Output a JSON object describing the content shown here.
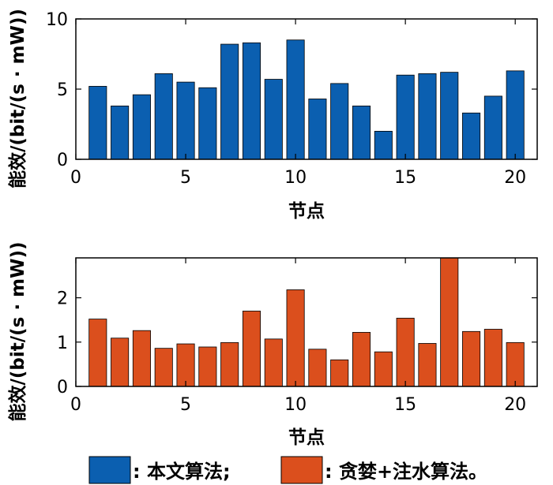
{
  "chart_data": [
    {
      "type": "bar",
      "xlabel": "节点",
      "ylabel": "能效/(bit/(s · mW))",
      "xlim": [
        0,
        21
      ],
      "ylim": [
        0,
        10
      ],
      "xticks": [
        "0",
        "5",
        "10",
        "15",
        "20"
      ],
      "yticks": [
        "0",
        "5",
        "10"
      ],
      "x": [
        1,
        2,
        3,
        4,
        5,
        6,
        7,
        8,
        9,
        10,
        11,
        12,
        13,
        14,
        15,
        16,
        17,
        18,
        19,
        20
      ],
      "series": [
        {
          "name": "本文算法",
          "color": "#0b5fb0",
          "values": [
            5.2,
            3.8,
            4.6,
            6.1,
            5.5,
            5.1,
            8.2,
            8.3,
            5.7,
            8.5,
            4.3,
            5.4,
            3.8,
            2.0,
            6.0,
            6.1,
            6.2,
            3.3,
            4.5,
            6.3
          ]
        }
      ]
    },
    {
      "type": "bar",
      "xlabel": "节点",
      "ylabel": "能效/(bit/(s · mW))",
      "xlim": [
        0,
        21
      ],
      "ylim": [
        0,
        2.9
      ],
      "xticks": [
        "0",
        "5",
        "10",
        "15",
        "20"
      ],
      "yticks": [
        "0",
        "1",
        "2"
      ],
      "x": [
        1,
        2,
        3,
        4,
        5,
        6,
        7,
        8,
        9,
        10,
        11,
        12,
        13,
        14,
        15,
        16,
        17,
        18,
        19,
        20
      ],
      "series": [
        {
          "name": "贪婪+注水算法",
          "color": "#db4f1d",
          "values": [
            1.52,
            1.09,
            1.26,
            0.86,
            0.96,
            0.89,
            0.99,
            1.7,
            1.07,
            2.18,
            0.84,
            0.6,
            1.22,
            0.78,
            1.54,
            0.97,
            2.9,
            1.24,
            1.29,
            0.99
          ]
        }
      ]
    }
  ],
  "legend": {
    "items": [
      {
        "label": ": 本文算法;",
        "color": "#0b5fb0"
      },
      {
        "label": ": 贪婪+注水算法。",
        "color": "#db4f1d"
      }
    ]
  }
}
